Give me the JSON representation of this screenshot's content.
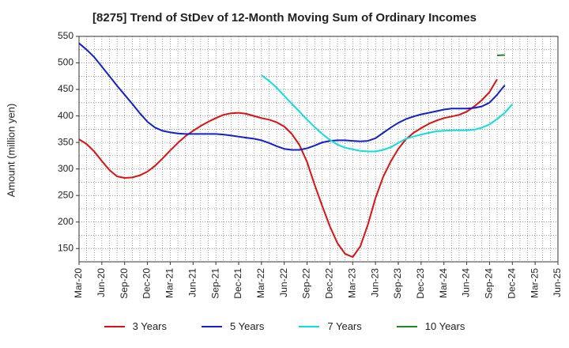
{
  "chart_data": {
    "type": "line",
    "title": "[8275]  Trend of StDev of 12-Month Moving Sum of Ordinary Incomes",
    "ylabel": "Amount (million yen)",
    "xlabel": "",
    "ylim": [
      125,
      550
    ],
    "yticks": [
      150,
      200,
      250,
      300,
      350,
      400,
      450,
      500,
      550
    ],
    "xticks": [
      "Mar-20",
      "Jun-20",
      "Sep-20",
      "Dec-20",
      "Mar-21",
      "Jun-21",
      "Sep-21",
      "Dec-21",
      "Mar-22",
      "Jun-22",
      "Sep-22",
      "Dec-22",
      "Mar-23",
      "Jun-23",
      "Sep-23",
      "Dec-23",
      "Mar-24",
      "Jun-24",
      "Sep-24",
      "Dec-24",
      "Mar-25",
      "Jun-25"
    ],
    "grid": true,
    "legend_position": "bottom",
    "series": [
      {
        "name": "3 Years",
        "color": "#dd1111",
        "start_index": 0,
        "values": [
          356,
          347,
          333,
          315,
          298,
          286,
          283,
          284,
          288,
          295,
          306,
          320,
          335,
          349,
          362,
          372,
          381,
          389,
          396,
          402,
          405,
          406,
          404,
          400,
          396,
          393,
          388,
          380,
          366,
          345,
          313,
          270,
          230,
          192,
          160,
          140,
          134,
          154,
          195,
          245,
          285,
          314,
          338,
          356,
          368,
          377,
          385,
          391,
          396,
          399,
          402,
          408,
          418,
          430,
          445,
          469
        ]
      },
      {
        "name": "5 Years",
        "color": "#1122cc",
        "start_index": 0,
        "values": [
          537,
          525,
          511,
          493,
          475,
          457,
          440,
          423,
          405,
          389,
          378,
          372,
          369,
          367,
          366,
          366,
          366,
          366,
          366,
          365,
          363,
          361,
          359,
          357,
          354,
          349,
          343,
          338,
          336,
          336,
          339,
          344,
          350,
          353,
          354,
          354,
          353,
          352,
          353,
          358,
          368,
          378,
          387,
          394,
          399,
          403,
          406,
          409,
          412,
          414,
          414,
          414,
          415,
          418,
          425,
          440,
          458
        ]
      },
      {
        "name": "7 Years",
        "color": "#11dddd",
        "start_index": 24,
        "values": [
          477,
          466,
          453,
          438,
          423,
          408,
          393,
          379,
          366,
          355,
          346,
          340,
          337,
          334,
          333,
          333,
          336,
          341,
          349,
          357,
          361,
          365,
          368,
          371,
          372,
          373,
          373,
          373,
          374,
          378,
          384,
          394,
          406,
          422
        ]
      },
      {
        "name": "10 Years",
        "color": "#228822",
        "start_index": 55,
        "values": [
          514,
          515
        ]
      }
    ]
  }
}
